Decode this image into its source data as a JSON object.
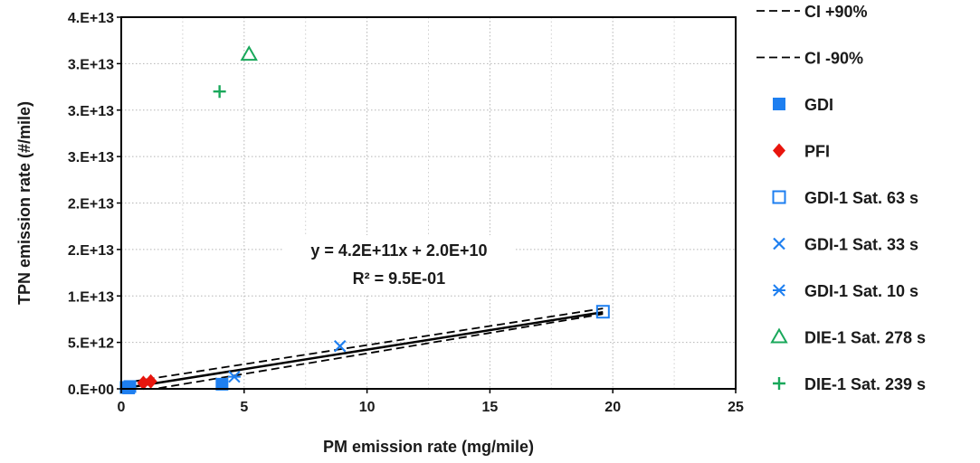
{
  "chart_data": {
    "type": "scatter",
    "xlabel": "PM emission rate (mg/mile)",
    "ylabel": "TPN emission rate (#/mile)",
    "xlim": [
      0,
      25
    ],
    "ylim": [
      0,
      40000000000000.0
    ],
    "x_ticks": [
      0,
      5,
      10,
      15,
      20,
      25
    ],
    "x_tick_labels": [
      "0",
      "5",
      "10",
      "15",
      "20",
      "25"
    ],
    "y_ticks": [
      0,
      5000000000000.0,
      10000000000000.0,
      15000000000000.0,
      20000000000000.0,
      25000000000000.0,
      30000000000000.0,
      35000000000000.0,
      40000000000000.0
    ],
    "y_tick_labels": [
      "0.E+00",
      "5.E+12",
      "1.E+13",
      "2.E+13",
      "2.E+13",
      "3.E+13",
      "3.E+13",
      "3.E+13",
      "4.E+13"
    ],
    "grid": "dotted",
    "legend_position": "right, outside plot",
    "annotation": {
      "equation": "y = 4.2E+11x + 2.0E+10",
      "r_squared": "R² = 9.5E-01"
    },
    "fit_line": {
      "slope": 420000000000.0,
      "intercept": 20000000000.0,
      "x_range": [
        0,
        19.6
      ],
      "color": "#000000"
    },
    "ci_bands": [
      {
        "name": "CI +90%",
        "y_at_x0": 600000000000.0,
        "y_at_x_end": 8650000000000.0,
        "color": "#000000",
        "style": "dashed"
      },
      {
        "name": "CI -90%",
        "y_at_x0": -600000000000.0,
        "y_at_x_end": 8050000000000.0,
        "color": "#000000",
        "style": "dashed"
      }
    ],
    "series": [
      {
        "name": "GDI",
        "marker": "filled-square",
        "color": "#1e7ff0",
        "points": [
          [
            0.2,
            150000000000.0
          ],
          [
            0.3,
            100000000000.0
          ],
          [
            0.35,
            250000000000.0
          ],
          [
            4.1,
            500000000000.0
          ]
        ]
      },
      {
        "name": "PFI",
        "marker": "filled-diamond",
        "color": "#e8150d",
        "points": [
          [
            0.9,
            650000000000.0
          ],
          [
            1.2,
            800000000000.0
          ]
        ]
      },
      {
        "name": "GDI-1 Sat. 63 s",
        "marker": "open-square",
        "color": "#1e7ff0",
        "points": [
          [
            19.6,
            8300000000000.0
          ]
        ]
      },
      {
        "name": "GDI-1 Sat. 33 s",
        "marker": "x",
        "color": "#1e7ff0",
        "points": [
          [
            8.9,
            4600000000000.0
          ]
        ]
      },
      {
        "name": "GDI-1 Sat. 10 s",
        "marker": "asterisk",
        "color": "#1e7ff0",
        "points": [
          [
            4.6,
            1300000000000.0
          ]
        ]
      },
      {
        "name": "DIE-1 Sat. 278 s",
        "marker": "open-triangle",
        "color": "#19a85b",
        "points": [
          [
            5.2,
            36000000000000.0
          ]
        ]
      },
      {
        "name": "DIE-1 Sat. 239 s",
        "marker": "plus",
        "color": "#19a85b",
        "points": [
          [
            4.0,
            32000000000000.0
          ]
        ]
      }
    ]
  }
}
